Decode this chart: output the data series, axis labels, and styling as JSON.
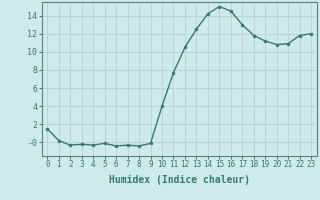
{
  "x": [
    0,
    1,
    2,
    3,
    4,
    5,
    6,
    7,
    8,
    9,
    10,
    11,
    12,
    13,
    14,
    15,
    16,
    17,
    18,
    19,
    20,
    21,
    22,
    23
  ],
  "y": [
    1.5,
    0.2,
    -0.3,
    -0.2,
    -0.3,
    -0.1,
    -0.4,
    -0.3,
    -0.4,
    -0.1,
    4.0,
    7.7,
    10.5,
    12.5,
    14.2,
    15.0,
    14.5,
    13.0,
    11.8,
    11.2,
    10.8,
    10.9,
    11.8,
    12.0
  ],
  "line_color": "#2e7d6e",
  "marker": "o",
  "markersize": 2.0,
  "linewidth": 1.0,
  "xlabel": "Humidex (Indice chaleur)",
  "xlabel_fontsize": 7,
  "xlim": [
    -0.5,
    23.5
  ],
  "ylim": [
    -1.5,
    15.5
  ],
  "yticks": [
    0,
    2,
    4,
    6,
    8,
    10,
    12,
    14
  ],
  "ytick_labels": [
    "-0",
    "2",
    "4",
    "6",
    "8",
    "10",
    "12",
    "14"
  ],
  "xticks": [
    0,
    1,
    2,
    3,
    4,
    5,
    6,
    7,
    8,
    9,
    10,
    11,
    12,
    13,
    14,
    15,
    16,
    17,
    18,
    19,
    20,
    21,
    22,
    23
  ],
  "background_color": "#ceeaea",
  "grid_color": "#b8d0d0",
  "tick_color": "#2e7d6e",
  "axis_color": "#5a8080",
  "tick_fontsize": 5.5,
  "ytick_fontsize": 6.0
}
